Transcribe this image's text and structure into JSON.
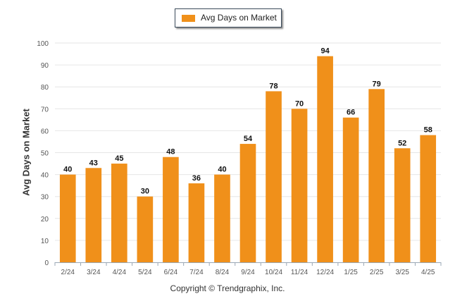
{
  "chart_data": {
    "type": "bar",
    "categories": [
      "2/24",
      "3/24",
      "4/24",
      "5/24",
      "6/24",
      "7/24",
      "8/24",
      "9/24",
      "10/24",
      "11/24",
      "12/24",
      "1/25",
      "2/25",
      "3/25",
      "4/25"
    ],
    "series": [
      {
        "name": "Avg Days on Market",
        "values": [
          40,
          43,
          45,
          30,
          48,
          36,
          40,
          54,
          78,
          70,
          94,
          66,
          79,
          52,
          58
        ]
      }
    ],
    "ylabel": "Avg Days on Market",
    "xlabel": "",
    "ylim": [
      0,
      100
    ],
    "yticks": [
      0,
      10,
      20,
      30,
      40,
      50,
      60,
      70,
      80,
      90,
      100
    ],
    "grid": true,
    "legend_position": "top-center",
    "data_labels": true,
    "bar_color": "#F0901A"
  },
  "footer": "Copyright © Trendgraphix, Inc."
}
